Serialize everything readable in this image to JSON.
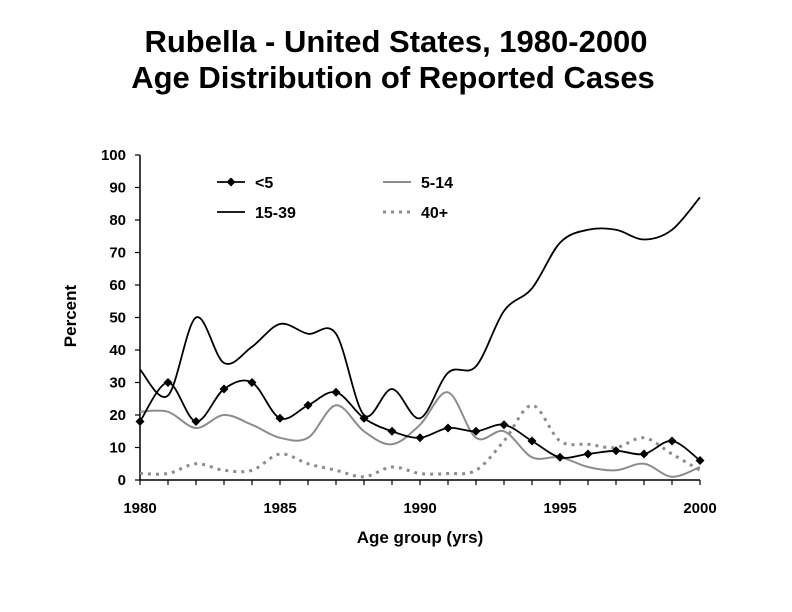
{
  "chart_data": {
    "type": "line",
    "title": "Rubella - United States, 1980-2000",
    "subtitle": "Age Distribution of Reported Cases",
    "xlabel": "Age group (yrs)",
    "ylabel": "Percent",
    "xlim": [
      1980,
      2000
    ],
    "ylim": [
      0,
      100
    ],
    "x_ticks": [
      "1980",
      "1985",
      "1990",
      "1995",
      "2000"
    ],
    "y_ticks": [
      "0",
      "10",
      "20",
      "30",
      "40",
      "50",
      "60",
      "70",
      "80",
      "90",
      "100"
    ],
    "grid": false,
    "legend_position": "top",
    "x": [
      1980,
      1981,
      1982,
      1983,
      1984,
      1985,
      1986,
      1987,
      1988,
      1989,
      1990,
      1991,
      1992,
      1993,
      1994,
      1995,
      1996,
      1997,
      1998,
      1999,
      2000
    ],
    "series": [
      {
        "name": "<5",
        "style": "solid-diamond",
        "color": "#000000",
        "values": [
          18,
          30,
          18,
          28,
          30,
          19,
          23,
          27,
          19,
          15,
          13,
          16,
          15,
          17,
          12,
          7,
          8,
          9,
          8,
          12,
          6
        ]
      },
      {
        "name": "5-14",
        "style": "solid-light",
        "color": "#8c8c8c",
        "values": [
          21,
          21,
          16,
          20,
          17,
          13,
          13,
          23,
          15,
          11,
          17,
          27,
          13,
          15,
          7,
          7,
          4,
          3,
          5,
          1,
          4
        ]
      },
      {
        "name": "15-39",
        "style": "solid",
        "color": "#000000",
        "values": [
          34,
          26,
          50,
          36,
          41,
          48,
          45,
          45,
          20,
          28,
          19,
          33,
          35,
          52,
          59,
          73,
          77,
          77,
          74,
          77,
          87
        ]
      },
      {
        "name": "40+",
        "style": "dotted",
        "color": "#8c8c8c",
        "values": [
          2,
          2,
          5,
          3,
          3,
          8,
          5,
          3,
          1,
          4,
          2,
          2,
          3,
          12,
          23,
          12,
          11,
          10,
          13,
          8,
          3
        ]
      }
    ]
  }
}
